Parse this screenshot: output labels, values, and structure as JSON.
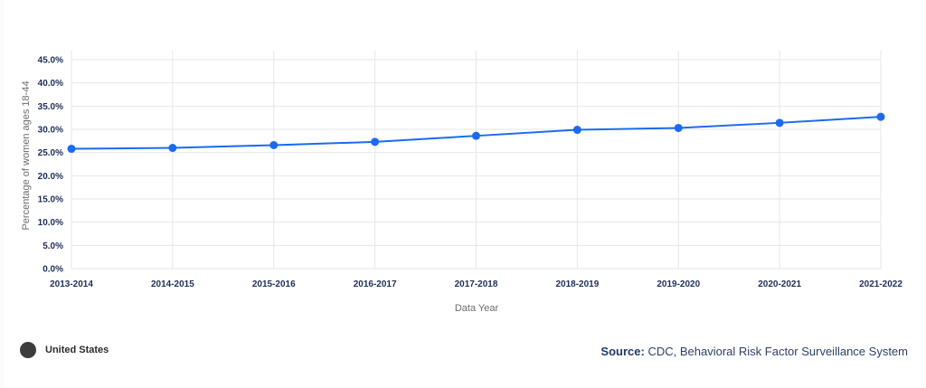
{
  "chart_data": {
    "type": "line",
    "title": "",
    "xlabel": "Data Year",
    "ylabel": "Percentage of women ages 18-44",
    "categories": [
      "2013-2014",
      "2014-2015",
      "2015-2016",
      "2016-2017",
      "2017-2018",
      "2018-2019",
      "2019-2020",
      "2020-2021",
      "2021-2022"
    ],
    "yticks": [
      "0.0%",
      "5.0%",
      "10.0%",
      "15.0%",
      "20.0%",
      "25.0%",
      "30.0%",
      "35.0%",
      "40.0%",
      "45.0%"
    ],
    "ylim": [
      0,
      45
    ],
    "grid": true,
    "series": [
      {
        "name": "United States",
        "values": [
          25.8,
          26.0,
          26.6,
          27.3,
          28.6,
          29.9,
          30.3,
          31.4,
          32.7
        ],
        "color": "#1a6bf0"
      }
    ],
    "legend_position": "bottom-left"
  },
  "legend": {
    "label": "United States",
    "marker_color": "#3c3c3c"
  },
  "source": {
    "label": "Source:",
    "text": "CDC, Behavioral Risk Factor Surveillance System"
  }
}
